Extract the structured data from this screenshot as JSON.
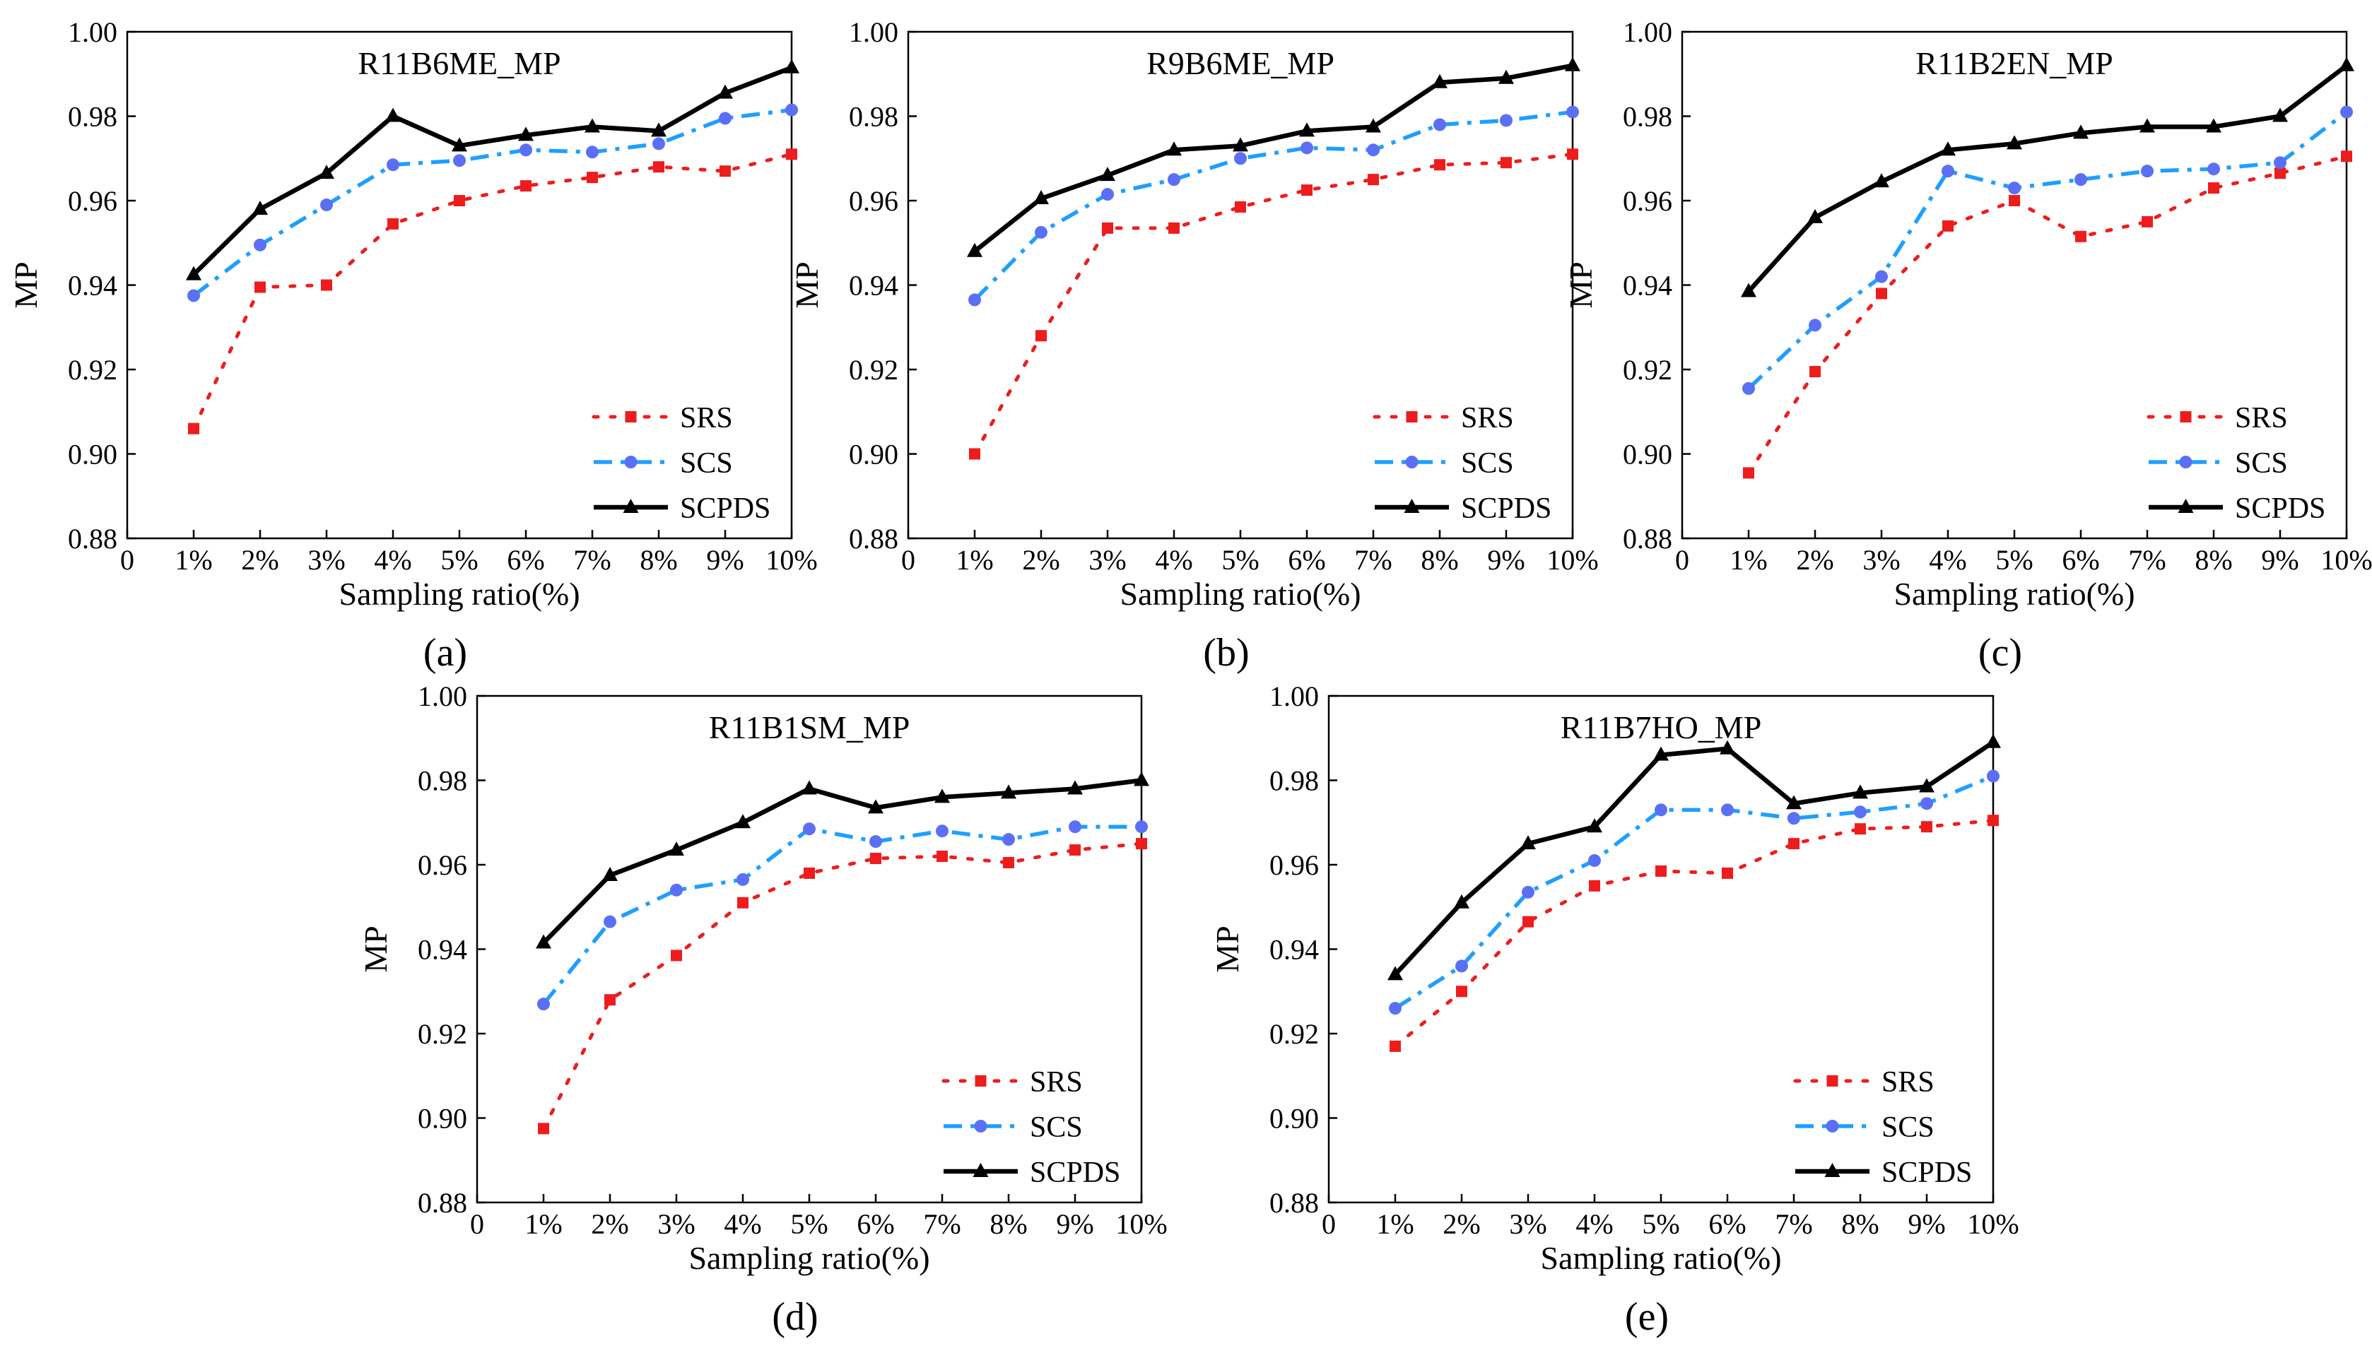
{
  "colors": {
    "SRS": "#ee1c1c",
    "SCS": "#1e9fff",
    "SCS_marker": "#5b6ff5",
    "SCPDS": "#000000"
  },
  "legend_placement": "bottom-right",
  "chart_data": [
    {
      "type": "line",
      "tag": "(a)",
      "title": "R11B6ME_MP",
      "xlabel": "Sampling ratio(%)",
      "ylabel": "MP",
      "xlim": [
        0,
        10
      ],
      "ylim": [
        0.88,
        1.0
      ],
      "x_ticks": [
        "0",
        "1%",
        "2%",
        "3%",
        "4%",
        "5%",
        "6%",
        "7%",
        "8%",
        "9%",
        "10%"
      ],
      "y_ticks": [
        "0.88",
        "0.90",
        "0.92",
        "0.94",
        "0.96",
        "0.98",
        "1.00"
      ],
      "x": [
        1,
        2,
        3,
        4,
        5,
        6,
        7,
        8,
        9,
        10
      ],
      "series": [
        {
          "name": "SRS",
          "values": [
            0.906,
            0.9395,
            0.94,
            0.9545,
            0.96,
            0.9635,
            0.9655,
            0.968,
            0.967,
            0.971
          ]
        },
        {
          "name": "SCS",
          "values": [
            0.9375,
            0.9495,
            0.959,
            0.9685,
            0.9695,
            0.972,
            0.9715,
            0.9735,
            0.9795,
            0.9815
          ]
        },
        {
          "name": "SCPDS",
          "values": [
            0.9425,
            0.958,
            0.9665,
            0.98,
            0.973,
            0.9755,
            0.9775,
            0.9765,
            0.9855,
            0.9915
          ]
        }
      ]
    },
    {
      "type": "line",
      "tag": "(b)",
      "title": "R9B6ME_MP",
      "xlabel": "Sampling ratio(%)",
      "ylabel": "MP",
      "xlim": [
        0,
        10
      ],
      "ylim": [
        0.88,
        1.0
      ],
      "x_ticks": [
        "0",
        "1%",
        "2%",
        "3%",
        "4%",
        "5%",
        "6%",
        "7%",
        "8%",
        "9%",
        "10%"
      ],
      "y_ticks": [
        "0.88",
        "0.90",
        "0.92",
        "0.94",
        "0.96",
        "0.98",
        "1.00"
      ],
      "x": [
        1,
        2,
        3,
        4,
        5,
        6,
        7,
        8,
        9,
        10
      ],
      "series": [
        {
          "name": "SRS",
          "values": [
            0.9,
            0.928,
            0.9535,
            0.9535,
            0.9585,
            0.9625,
            0.965,
            0.9685,
            0.969,
            0.971
          ]
        },
        {
          "name": "SCS",
          "values": [
            0.9365,
            0.9525,
            0.9615,
            0.965,
            0.97,
            0.9725,
            0.972,
            0.978,
            0.979,
            0.981
          ]
        },
        {
          "name": "SCPDS",
          "values": [
            0.948,
            0.9605,
            0.966,
            0.972,
            0.973,
            0.9765,
            0.9775,
            0.988,
            0.989,
            0.992
          ]
        }
      ]
    },
    {
      "type": "line",
      "tag": "(c)",
      "title": "R11B2EN_MP",
      "xlabel": "Sampling ratio(%)",
      "ylabel": "MP",
      "xlim": [
        0,
        10
      ],
      "ylim": [
        0.88,
        1.0
      ],
      "x_ticks": [
        "0",
        "1%",
        "2%",
        "3%",
        "4%",
        "5%",
        "6%",
        "7%",
        "8%",
        "9%",
        "10%"
      ],
      "y_ticks": [
        "0.88",
        "0.90",
        "0.92",
        "0.94",
        "0.96",
        "0.98",
        "1.00"
      ],
      "x": [
        1,
        2,
        3,
        4,
        5,
        6,
        7,
        8,
        9,
        10
      ],
      "series": [
        {
          "name": "SRS",
          "values": [
            0.8955,
            0.9195,
            0.938,
            0.954,
            0.96,
            0.9515,
            0.955,
            0.963,
            0.9665,
            0.9705
          ]
        },
        {
          "name": "SCS",
          "values": [
            0.9155,
            0.9305,
            0.942,
            0.967,
            0.963,
            0.965,
            0.967,
            0.9675,
            0.969,
            0.981
          ]
        },
        {
          "name": "SCPDS",
          "values": [
            0.9385,
            0.956,
            0.9645,
            0.972,
            0.9735,
            0.976,
            0.9775,
            0.9775,
            0.98,
            0.992
          ]
        }
      ]
    },
    {
      "type": "line",
      "tag": "(d)",
      "title": "R11B1SM_MP",
      "xlabel": "Sampling ratio(%)",
      "ylabel": "MP",
      "xlim": [
        0,
        10
      ],
      "ylim": [
        0.88,
        1.0
      ],
      "x_ticks": [
        "0",
        "1%",
        "2%",
        "3%",
        "4%",
        "5%",
        "6%",
        "7%",
        "8%",
        "9%",
        "10%"
      ],
      "y_ticks": [
        "0.88",
        "0.90",
        "0.92",
        "0.94",
        "0.96",
        "0.98",
        "1.00"
      ],
      "x": [
        1,
        2,
        3,
        4,
        5,
        6,
        7,
        8,
        9,
        10
      ],
      "series": [
        {
          "name": "SRS",
          "values": [
            0.8975,
            0.928,
            0.9385,
            0.951,
            0.958,
            0.9615,
            0.962,
            0.9605,
            0.9635,
            0.965
          ]
        },
        {
          "name": "SCS",
          "values": [
            0.927,
            0.9465,
            0.954,
            0.9565,
            0.9685,
            0.9655,
            0.968,
            0.966,
            0.969,
            0.969
          ]
        },
        {
          "name": "SCPDS",
          "values": [
            0.9415,
            0.9575,
            0.9635,
            0.97,
            0.978,
            0.9735,
            0.976,
            0.977,
            0.978,
            0.98
          ]
        }
      ]
    },
    {
      "type": "line",
      "tag": "(e)",
      "title": "R11B7HO_MP",
      "xlabel": "Sampling ratio(%)",
      "ylabel": "MP",
      "xlim": [
        0,
        10
      ],
      "ylim": [
        0.88,
        1.0
      ],
      "x_ticks": [
        "0",
        "1%",
        "2%",
        "3%",
        "4%",
        "5%",
        "6%",
        "7%",
        "8%",
        "9%",
        "10%"
      ],
      "y_ticks": [
        "0.88",
        "0.90",
        "0.92",
        "0.94",
        "0.96",
        "0.98",
        "1.00"
      ],
      "x": [
        1,
        2,
        3,
        4,
        5,
        6,
        7,
        8,
        9,
        10
      ],
      "series": [
        {
          "name": "SRS",
          "values": [
            0.917,
            0.93,
            0.9465,
            0.955,
            0.9585,
            0.958,
            0.965,
            0.9685,
            0.969,
            0.9705
          ]
        },
        {
          "name": "SCS",
          "values": [
            0.926,
            0.936,
            0.9535,
            0.961,
            0.973,
            0.973,
            0.971,
            0.9725,
            0.9745,
            0.981
          ]
        },
        {
          "name": "SCPDS",
          "values": [
            0.934,
            0.951,
            0.965,
            0.969,
            0.986,
            0.9875,
            0.9745,
            0.977,
            0.9785,
            0.989
          ]
        }
      ]
    }
  ]
}
